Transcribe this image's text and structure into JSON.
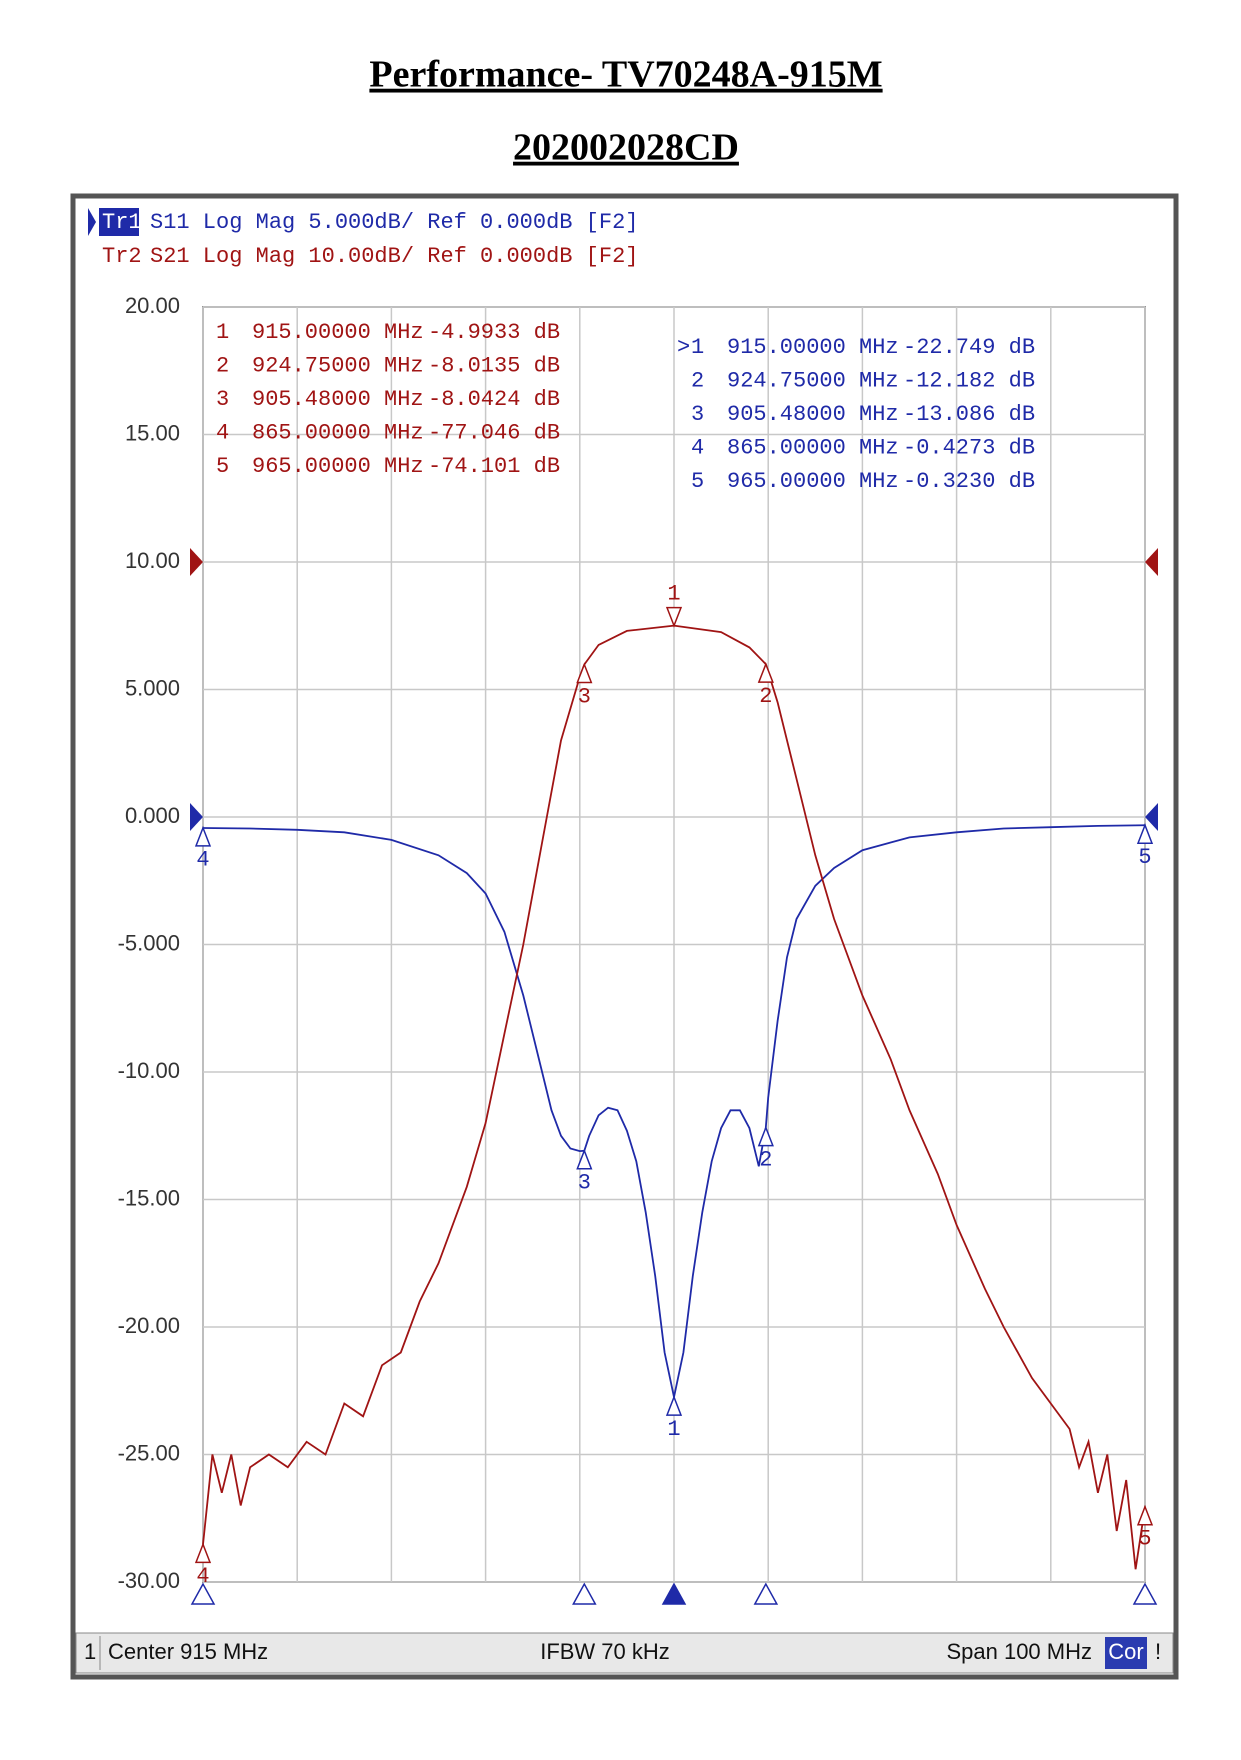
{
  "header": {
    "title": "Performance- TV70248A-915M",
    "subtitle": "202002028CD"
  },
  "chart_data": {
    "type": "line",
    "xlim": [
      865,
      965
    ],
    "xticks": [
      865,
      875,
      885,
      895,
      905,
      915,
      925,
      935,
      945,
      955,
      965
    ],
    "xtick_labels": false,
    "ylim": [
      -30,
      20
    ],
    "yticks": [
      {
        "value": 20,
        "label": "20.00"
      },
      {
        "value": 15,
        "label": "15.00"
      },
      {
        "value": 10,
        "label": "10.00"
      },
      {
        "value": 5,
        "label": "5.000"
      },
      {
        "value": 0,
        "label": "0.000"
      },
      {
        "value": -5,
        "label": "-5.000"
      },
      {
        "value": -10,
        "label": "-10.00"
      },
      {
        "value": -15,
        "label": "-15.00"
      },
      {
        "value": -20,
        "label": "-20.00"
      },
      {
        "value": -25,
        "label": "-25.00"
      },
      {
        "value": -30,
        "label": "-30.00"
      }
    ],
    "y2lim": [
      -80,
      20
    ],
    "grid": true,
    "series": [
      {
        "name": "Tr1",
        "description": "S11 Log Mag 5.000dB/ Ref 0.000dB [F2]",
        "color": "#1f2aa8",
        "ref_level": 0,
        "active_marker_symbol": ">",
        "x": [
          865,
          870,
          875,
          880,
          885,
          890,
          893,
          895,
          897,
          899,
          901,
          902,
          903,
          904,
          905,
          905.48,
          906,
          907,
          908,
          909,
          910,
          911,
          912,
          913,
          914,
          915,
          916,
          917,
          918,
          919,
          920,
          921,
          922,
          923,
          924,
          924.75,
          925,
          926,
          927,
          928,
          930,
          932,
          935,
          940,
          945,
          950,
          955,
          960,
          965
        ],
        "values": [
          -0.43,
          -0.45,
          -0.5,
          -0.6,
          -0.9,
          -1.5,
          -2.2,
          -3,
          -4.5,
          -7,
          -10,
          -11.5,
          -12.5,
          -13,
          -13.1,
          -13.09,
          -12.5,
          -11.7,
          -11.4,
          -11.5,
          -12.3,
          -13.5,
          -15.5,
          -18,
          -21,
          -22.75,
          -21,
          -18,
          -15.5,
          -13.5,
          -12.2,
          -11.5,
          -11.5,
          -12.2,
          -13.7,
          -12.18,
          -11,
          -8,
          -5.5,
          -4,
          -2.7,
          -2,
          -1.3,
          -0.8,
          -0.6,
          -0.45,
          -0.4,
          -0.35,
          -0.32
        ],
        "markers": [
          {
            "id": "1",
            "active": true,
            "freq": 915,
            "freq_label": "915.00000 MHz",
            "value": -22.749,
            "value_label": "-22.749 dB"
          },
          {
            "id": "2",
            "active": false,
            "freq": 924.75,
            "freq_label": "924.75000 MHz",
            "value": -12.182,
            "value_label": "-12.182 dB"
          },
          {
            "id": "3",
            "active": false,
            "freq": 905.48,
            "freq_label": "905.48000 MHz",
            "value": -13.086,
            "value_label": "-13.086 dB"
          },
          {
            "id": "4",
            "active": false,
            "freq": 865,
            "freq_label": "865.00000 MHz",
            "value": -0.4273,
            "value_label": "-0.4273 dB"
          },
          {
            "id": "5",
            "active": false,
            "freq": 965,
            "freq_label": "965.00000 MHz",
            "value": -0.323,
            "value_label": "-0.3230 dB"
          }
        ]
      },
      {
        "name": "Tr2",
        "description": "S21 Log Mag 10.00dB/ Ref 0.000dB [F2]",
        "color": "#a01414",
        "ref_level": 0,
        "axis": "y2",
        "x": [
          865,
          866,
          867,
          868,
          869,
          870,
          872,
          874,
          876,
          878,
          880,
          882,
          884,
          886,
          888,
          890,
          893,
          895,
          897,
          899,
          901,
          903,
          905,
          905.48,
          907,
          910,
          915,
          920,
          923,
          924.75,
          926,
          928,
          930,
          932,
          935,
          938,
          940,
          943,
          945,
          948,
          950,
          953,
          955,
          957,
          958,
          959,
          960,
          961,
          962,
          963,
          964,
          965
        ],
        "values": [
          -77.05,
          -70,
          -73,
          -70,
          -74,
          -71,
          -70,
          -71,
          -69,
          -70,
          -66,
          -67,
          -63,
          -62,
          -58,
          -55,
          -49,
          -44,
          -37,
          -30,
          -22,
          -14,
          -9,
          -8.04,
          -6.5,
          -5.4,
          -4.99,
          -5.5,
          -6.7,
          -8.01,
          -11,
          -17,
          -23,
          -28,
          -34,
          -39,
          -43,
          -48,
          -52,
          -57,
          -60,
          -64,
          -66,
          -68,
          -71,
          -69,
          -73,
          -70,
          -76,
          -72,
          -79,
          -74.1
        ],
        "markers": [
          {
            "id": "1",
            "freq": 915,
            "freq_label": "915.00000 MHz",
            "value": -4.9933,
            "value_label": "-4.9933 dB"
          },
          {
            "id": "2",
            "freq": 924.75,
            "freq_label": "924.75000 MHz",
            "value": -8.0135,
            "value_label": "-8.0135 dB"
          },
          {
            "id": "3",
            "freq": 905.48,
            "freq_label": "905.48000 MHz",
            "value": -8.0424,
            "value_label": "-8.0424 dB"
          },
          {
            "id": "4",
            "freq": 865,
            "freq_label": "865.00000 MHz",
            "value": -77.046,
            "value_label": "-77.046 dB"
          },
          {
            "id": "5",
            "freq": 965,
            "freq_label": "965.00000 MHz",
            "value": -74.101,
            "value_label": "-74.101 dB"
          }
        ]
      }
    ],
    "status_bar": {
      "channel": "1",
      "center": "Center 915 MHz",
      "ifbw": "IFBW 70 kHz",
      "span": "Span 100 MHz",
      "correction": "Cor",
      "alert": "!"
    }
  }
}
